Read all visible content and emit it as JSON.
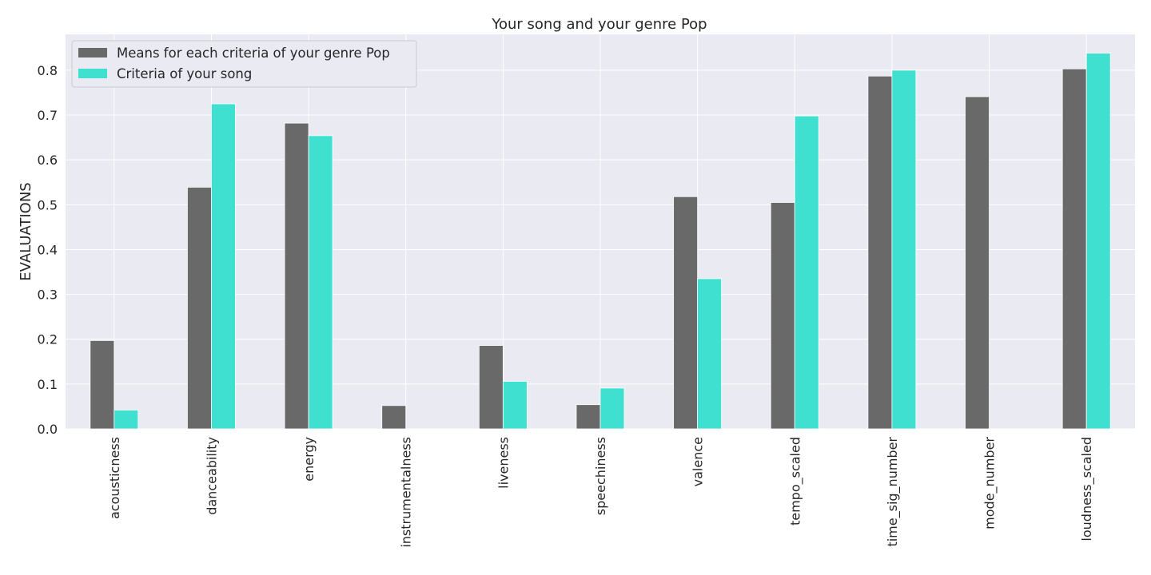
{
  "chart_data": {
    "type": "bar",
    "title": "Your song and your genre Pop",
    "xlabel": "",
    "ylabel": "EVALUATIONS",
    "ylim": [
      0,
      0.88
    ],
    "yticks": [
      0.0,
      0.1,
      0.2,
      0.3,
      0.4,
      0.5,
      0.6,
      0.7,
      0.8
    ],
    "ytick_labels": [
      "0.0",
      "0.1",
      "0.2",
      "0.3",
      "0.4",
      "0.5",
      "0.6",
      "0.7",
      "0.8"
    ],
    "grid": true,
    "legend_position": "top-left",
    "categories": [
      "acousticness",
      "danceability",
      "energy",
      "instrumentalness",
      "liveness",
      "speechiness",
      "valence",
      "tempo_scaled",
      "time_sig_number",
      "mode_number",
      "loudness_scaled"
    ],
    "series": [
      {
        "name": "Means for each criteria of your genre Pop",
        "color": "#696969",
        "values": [
          0.197,
          0.539,
          0.682,
          0.052,
          0.186,
          0.054,
          0.518,
          0.505,
          0.787,
          0.741,
          0.803
        ]
      },
      {
        "name": "Criteria of your song",
        "color": "#40e0d0",
        "values": [
          0.042,
          0.725,
          0.654,
          0.0,
          0.106,
          0.091,
          0.335,
          0.698,
          0.8,
          0.0,
          0.838
        ]
      }
    ],
    "colors": {
      "plot_background": "#eaeaf2",
      "grid": "#ffffff"
    }
  }
}
